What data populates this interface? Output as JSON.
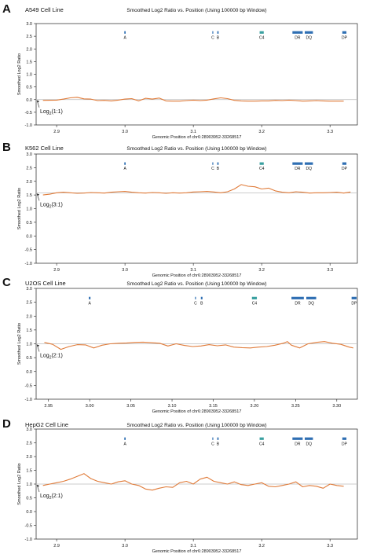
{
  "colors": {
    "line": "#e07b39",
    "gene_bar": "#2f6fb3",
    "c4_bar": "#3aa0a0",
    "axis": "#222222",
    "refline": "#bbbbbb",
    "text": "#111111"
  },
  "chart_data": [
    {
      "type": "line",
      "panel_letter": "A",
      "cell_line": "A549 Cell Line",
      "title": "Smoothed Log2 Ratio vs. Position (Using 100000 bp Window)",
      "xlabel": "Genomic Position of chr6:28903952-33268517",
      "ylabel": "Smoothed Log2 Ratio",
      "xlim": [
        2.87,
        3.34
      ],
      "ylim": [
        -1.0,
        3.0
      ],
      "xticks": [
        "2.9",
        "3.0",
        "3.1",
        "3.2",
        "3.3"
      ],
      "yticks": [
        "-1.0",
        "-0.5",
        "0.0",
        "0.5",
        "1.0",
        "1.5",
        "2.0",
        "2.5",
        "3.0"
      ],
      "reference_value": 0.0,
      "reference_label": "Log",
      "reference_sub": "2",
      "reference_ratio": "(1:1)",
      "genes": [
        {
          "name": "A",
          "x": [
            2.999,
            3.001
          ]
        },
        {
          "name": "C",
          "x": [
            3.128,
            3.129
          ]
        },
        {
          "name": "B",
          "x": [
            3.135,
            3.137
          ]
        },
        {
          "name": "C4",
          "x": [
            3.197,
            3.203
          ]
        },
        {
          "name": "DR",
          "x": [
            3.245,
            3.26
          ]
        },
        {
          "name": "DQ",
          "x": [
            3.263,
            3.275
          ]
        },
        {
          "name": "DP",
          "x": [
            3.318,
            3.324
          ]
        }
      ],
      "series": [
        {
          "x": [
            2.88,
            2.9,
            2.91,
            2.92,
            2.93,
            2.94,
            2.95,
            2.96,
            2.97,
            2.98,
            2.99,
            3.0,
            3.01,
            3.02,
            3.03,
            3.04,
            3.05,
            3.06,
            3.07,
            3.08,
            3.09,
            3.1,
            3.11,
            3.12,
            3.13,
            3.14,
            3.15,
            3.16,
            3.17,
            3.18,
            3.19,
            3.2,
            3.21,
            3.22,
            3.23,
            3.24,
            3.25,
            3.26,
            3.27,
            3.28,
            3.29,
            3.3,
            3.31,
            3.32
          ],
          "y": [
            -0.03,
            -0.02,
            0.02,
            0.07,
            0.09,
            0.03,
            0.02,
            -0.04,
            -0.03,
            -0.05,
            -0.02,
            0.02,
            0.04,
            -0.05,
            0.05,
            0.02,
            0.06,
            -0.05,
            -0.06,
            -0.06,
            -0.04,
            -0.02,
            -0.04,
            -0.02,
            0.03,
            0.07,
            0.04,
            -0.03,
            -0.05,
            -0.06,
            -0.06,
            -0.05,
            -0.05,
            -0.03,
            -0.04,
            -0.02,
            -0.04,
            -0.06,
            -0.05,
            -0.04,
            -0.05,
            -0.06,
            -0.06,
            -0.06
          ]
        }
      ]
    },
    {
      "type": "line",
      "panel_letter": "B",
      "cell_line": "K562 Cell Line",
      "title": "Smoothed Log2 Ratio vs. Position (Using 100000 bp Window)",
      "xlabel": "Genomic Position of chr6:28903952-33268517",
      "ylabel": "Smoothed Log2 Ratio",
      "xlim": [
        2.87,
        3.34
      ],
      "ylim": [
        -1.0,
        3.0
      ],
      "xticks": [
        "2.9",
        "3.0",
        "3.1",
        "3.2",
        "3.3"
      ],
      "yticks": [
        "-1.0",
        "-0.5",
        "0.0",
        "0.5",
        "1.0",
        "1.5",
        "2.0",
        "2.5",
        "3.0"
      ],
      "reference_value": 1.58,
      "reference_label": "Log",
      "reference_sub": "2",
      "reference_ratio": "(3:1)",
      "genes": [
        {
          "name": "A",
          "x": [
            2.999,
            3.001
          ]
        },
        {
          "name": "C",
          "x": [
            3.128,
            3.129
          ]
        },
        {
          "name": "B",
          "x": [
            3.135,
            3.137
          ]
        },
        {
          "name": "C4",
          "x": [
            3.197,
            3.203
          ]
        },
        {
          "name": "DR",
          "x": [
            3.245,
            3.26
          ]
        },
        {
          "name": "DQ",
          "x": [
            3.263,
            3.275
          ]
        },
        {
          "name": "DP",
          "x": [
            3.318,
            3.324
          ]
        }
      ],
      "series": [
        {
          "x": [
            2.88,
            2.89,
            2.9,
            2.91,
            2.92,
            2.93,
            2.94,
            2.95,
            2.96,
            2.97,
            2.98,
            2.99,
            3.0,
            3.01,
            3.02,
            3.03,
            3.04,
            3.05,
            3.06,
            3.07,
            3.08,
            3.09,
            3.1,
            3.11,
            3.12,
            3.13,
            3.14,
            3.15,
            3.16,
            3.17,
            3.18,
            3.19,
            3.2,
            3.21,
            3.22,
            3.23,
            3.24,
            3.25,
            3.26,
            3.27,
            3.28,
            3.29,
            3.3,
            3.31,
            3.32,
            3.33
          ],
          "y": [
            1.5,
            1.53,
            1.58,
            1.6,
            1.58,
            1.56,
            1.57,
            1.59,
            1.58,
            1.57,
            1.6,
            1.62,
            1.63,
            1.6,
            1.58,
            1.57,
            1.59,
            1.58,
            1.56,
            1.58,
            1.57,
            1.58,
            1.61,
            1.62,
            1.63,
            1.61,
            1.58,
            1.62,
            1.72,
            1.88,
            1.82,
            1.8,
            1.72,
            1.75,
            1.65,
            1.6,
            1.58,
            1.62,
            1.6,
            1.57,
            1.58,
            1.58,
            1.59,
            1.6,
            1.57,
            1.61
          ]
        }
      ]
    },
    {
      "type": "line",
      "panel_letter": "C",
      "cell_line": "U2OS Cell Line",
      "title": "Smoothed Log2 Ratio vs. Position (Using 100000 bp Window)",
      "xlabel": "Genomic Position of chr6:28903952-33268517",
      "ylabel": "Smoothed Log2 Ratio",
      "xlim": [
        2.935,
        3.325
      ],
      "ylim": [
        -1.0,
        3.0
      ],
      "xticks": [
        "2.95",
        "3.00",
        "3.05",
        "3.10",
        "3.15",
        "3.20",
        "3.25",
        "3.30"
      ],
      "yticks": [
        "-1.0",
        "-0.5",
        "0.0",
        "0.5",
        "1.0",
        "1.5",
        "2.0",
        "2.5",
        "3.0"
      ],
      "reference_value": 1.0,
      "reference_label": "Log",
      "reference_sub": "2",
      "reference_ratio": "(2:1)",
      "genes": [
        {
          "name": "A",
          "x": [
            2.999,
            3.001
          ]
        },
        {
          "name": "C",
          "x": [
            3.128,
            3.129
          ]
        },
        {
          "name": "B",
          "x": [
            3.135,
            3.137
          ]
        },
        {
          "name": "C4",
          "x": [
            3.197,
            3.203
          ]
        },
        {
          "name": "DR",
          "x": [
            3.245,
            3.26
          ]
        },
        {
          "name": "DQ",
          "x": [
            3.263,
            3.275
          ]
        },
        {
          "name": "DP",
          "x": [
            3.318,
            3.324
          ]
        }
      ],
      "series": [
        {
          "x": [
            2.945,
            2.955,
            2.965,
            2.975,
            2.985,
            2.995,
            3.005,
            3.015,
            3.025,
            3.035,
            3.045,
            3.055,
            3.065,
            3.075,
            3.085,
            3.095,
            3.105,
            3.115,
            3.125,
            3.135,
            3.145,
            3.155,
            3.165,
            3.175,
            3.185,
            3.195,
            3.205,
            3.215,
            3.225,
            3.235,
            3.24,
            3.245,
            3.255,
            3.265,
            3.275,
            3.285,
            3.295,
            3.305,
            3.315,
            3.32
          ],
          "y": [
            1.05,
            0.98,
            0.8,
            0.9,
            0.97,
            0.96,
            0.85,
            0.95,
            1.0,
            1.02,
            1.03,
            1.05,
            1.06,
            1.04,
            1.02,
            0.92,
            1.0,
            0.94,
            0.9,
            0.92,
            0.97,
            0.93,
            0.96,
            0.88,
            0.86,
            0.85,
            0.88,
            0.9,
            0.95,
            1.02,
            1.08,
            0.95,
            0.85,
            1.0,
            1.05,
            1.08,
            1.02,
            0.98,
            0.88,
            0.85
          ]
        }
      ]
    },
    {
      "type": "line",
      "panel_letter": "D",
      "cell_line": "HepG2 Cell Line",
      "title": "Smoothed Log2 Ratio vs. Position (Using 100000 bp Window)",
      "xlabel": "Genomic Position of chr6:28903952-33268517",
      "ylabel": "Smoothed Log2 Ratio",
      "xlim": [
        2.87,
        3.34
      ],
      "ylim": [
        -1.0,
        3.0
      ],
      "xticks": [
        "2.9",
        "3.0",
        "3.1",
        "3.2",
        "3.3"
      ],
      "yticks": [
        "-1.0",
        "-0.5",
        "0.0",
        "0.5",
        "1.0",
        "1.5",
        "2.0",
        "2.5",
        "3.0"
      ],
      "reference_value": 1.0,
      "reference_label": "Log",
      "reference_sub": "2",
      "reference_ratio": "(2:1)",
      "genes": [
        {
          "name": "A",
          "x": [
            2.999,
            3.001
          ]
        },
        {
          "name": "C",
          "x": [
            3.128,
            3.129
          ]
        },
        {
          "name": "B",
          "x": [
            3.135,
            3.137
          ]
        },
        {
          "name": "C4",
          "x": [
            3.197,
            3.203
          ]
        },
        {
          "name": "DR",
          "x": [
            3.245,
            3.26
          ]
        },
        {
          "name": "DQ",
          "x": [
            3.263,
            3.275
          ]
        },
        {
          "name": "DP",
          "x": [
            3.318,
            3.324
          ]
        }
      ],
      "series": [
        {
          "x": [
            2.88,
            2.89,
            2.9,
            2.91,
            2.92,
            2.93,
            2.94,
            2.95,
            2.96,
            2.97,
            2.98,
            2.99,
            3.0,
            3.01,
            3.02,
            3.03,
            3.04,
            3.05,
            3.06,
            3.07,
            3.08,
            3.09,
            3.1,
            3.11,
            3.12,
            3.13,
            3.14,
            3.15,
            3.16,
            3.17,
            3.18,
            3.19,
            3.2,
            3.21,
            3.22,
            3.23,
            3.24,
            3.25,
            3.26,
            3.27,
            3.28,
            3.29,
            3.3,
            3.31,
            3.32
          ],
          "y": [
            0.95,
            1.0,
            1.05,
            1.1,
            1.18,
            1.28,
            1.38,
            1.2,
            1.1,
            1.05,
            1.0,
            1.08,
            1.12,
            1.0,
            0.95,
            0.82,
            0.78,
            0.85,
            0.9,
            0.88,
            1.05,
            1.1,
            1.0,
            1.18,
            1.25,
            1.1,
            1.05,
            1.0,
            1.08,
            0.98,
            0.95,
            1.0,
            1.05,
            0.92,
            0.9,
            0.95,
            1.0,
            1.08,
            0.9,
            0.95,
            0.92,
            0.85,
            1.0,
            0.95,
            0.92
          ]
        }
      ]
    }
  ]
}
